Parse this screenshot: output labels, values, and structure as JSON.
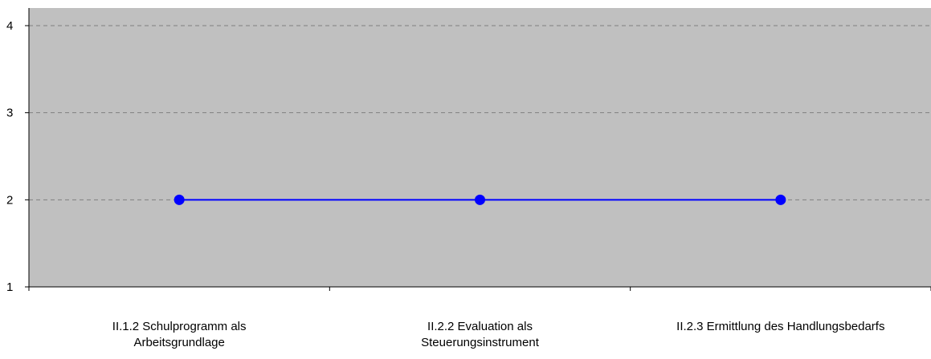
{
  "chart_data": {
    "type": "line",
    "categories": [
      "II.1.2 Schulprogramm als\nArbeitsgrundlage",
      "II.2.2 Evaluation als\nSteuerungsinstrument",
      "II.2.3 Ermittlung des Handlungsbedarfs"
    ],
    "series": [
      {
        "values": [
          2,
          2,
          2
        ]
      }
    ],
    "ylim": [
      1,
      4
    ],
    "yticks": [
      "1",
      "2",
      "3",
      "4"
    ],
    "grid": "horizontal dashed",
    "legend": "none",
    "title": "",
    "xlabel": "",
    "ylabel": ""
  },
  "colors": {
    "plot_background": "#c0c0c0",
    "series": "#0000ff",
    "grid": "#808080",
    "axis": "#000000"
  }
}
